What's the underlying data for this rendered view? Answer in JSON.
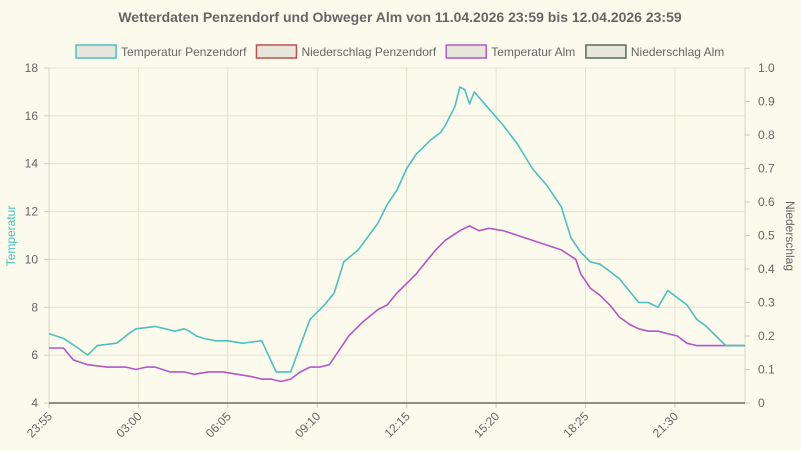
{
  "chart_data": {
    "type": "line",
    "title": "Wetterdaten Penzendorf und Obweger Alm von 11.04.2026 23:59 bis 12.04.2026 23:59",
    "ylabel": "Temperatur",
    "y2label": "Niederschlag",
    "ylim": [
      4,
      18
    ],
    "y_ticks": [
      "4",
      "6",
      "8",
      "10",
      "12",
      "14",
      "16",
      "18"
    ],
    "y2lim": [
      0,
      1
    ],
    "y2_ticks": [
      "0",
      "0.1",
      "0.2",
      "0.3",
      "0.4",
      "0.5",
      "0.6",
      "0.7",
      "0.8",
      "0.9",
      "1.0"
    ],
    "x_tick_labels": [
      "23:55",
      "03:00",
      "06:05",
      "09:10",
      "12:15",
      "15:20",
      "18:25",
      "21:30"
    ],
    "x_range_minutes": [
      0,
      1440
    ],
    "grid": true,
    "legend_position": "top",
    "series": [
      {
        "name": "Temperatur Penzendorf",
        "axis": "left",
        "color": "#4bc0c0",
        "x": [
          0,
          30,
          60,
          80,
          100,
          140,
          165,
          180,
          220,
          260,
          280,
          290,
          305,
          320,
          345,
          370,
          400,
          440,
          470,
          500,
          520,
          540,
          570,
          590,
          610,
          640,
          680,
          700,
          720,
          740,
          760,
          790,
          810,
          820,
          840,
          850,
          860,
          870,
          880,
          910,
          940,
          970,
          1000,
          1030,
          1060,
          1080,
          1100,
          1120,
          1140,
          1160,
          1180,
          1200,
          1220,
          1240,
          1260,
          1280,
          1300,
          1320,
          1340,
          1360,
          1380,
          1400,
          1410,
          1420,
          1440
        ],
        "values": [
          6.9,
          6.7,
          6.3,
          6.0,
          6.4,
          6.5,
          6.9,
          7.1,
          7.2,
          7.0,
          7.1,
          7.0,
          6.8,
          6.7,
          6.6,
          6.6,
          6.5,
          6.6,
          5.3,
          5.3,
          6.4,
          7.5,
          8.1,
          8.6,
          9.9,
          10.4,
          11.5,
          12.3,
          12.9,
          13.8,
          14.4,
          15.0,
          15.3,
          15.6,
          16.4,
          17.2,
          17.1,
          16.5,
          17.0,
          16.3,
          15.6,
          14.8,
          13.8,
          13.1,
          12.2,
          10.9,
          10.3,
          9.9,
          9.8,
          9.5,
          9.2,
          8.7,
          8.2,
          8.2,
          8.0,
          8.7,
          8.4,
          8.1,
          7.5,
          7.2,
          6.8,
          6.4,
          6.4,
          6.4,
          6.4
        ],
        "display_points": 65
      },
      {
        "name": "Niederschlag Penzendorf",
        "axis": "right",
        "color": "#c0504d",
        "x": [
          0,
          1440
        ],
        "values": [
          0,
          0
        ]
      },
      {
        "name": "Temperatur Alm",
        "axis": "left",
        "color": "#b058c8",
        "x": [
          0,
          30,
          50,
          80,
          120,
          160,
          180,
          200,
          220,
          250,
          280,
          300,
          330,
          360,
          390,
          420,
          440,
          460,
          480,
          500,
          520,
          540,
          560,
          580,
          600,
          620,
          650,
          680,
          700,
          720,
          740,
          760,
          780,
          800,
          820,
          850,
          870,
          880,
          890,
          910,
          940,
          970,
          1000,
          1030,
          1060,
          1090,
          1100,
          1120,
          1140,
          1160,
          1180,
          1200,
          1220,
          1240,
          1260,
          1280,
          1300,
          1320,
          1340,
          1360,
          1380,
          1400,
          1420,
          1440
        ],
        "values": [
          6.3,
          6.3,
          5.8,
          5.6,
          5.5,
          5.5,
          5.4,
          5.5,
          5.5,
          5.3,
          5.3,
          5.2,
          5.3,
          5.3,
          5.2,
          5.1,
          5.0,
          5.0,
          4.9,
          5.0,
          5.3,
          5.5,
          5.5,
          5.6,
          6.2,
          6.8,
          7.4,
          7.9,
          8.1,
          8.6,
          9.0,
          9.4,
          9.9,
          10.4,
          10.8,
          11.2,
          11.4,
          11.3,
          11.2,
          11.3,
          11.2,
          11.0,
          10.8,
          10.6,
          10.4,
          10.0,
          9.4,
          8.8,
          8.5,
          8.1,
          7.6,
          7.3,
          7.1,
          7.0,
          7.0,
          6.9,
          6.8,
          6.5,
          6.4,
          6.4,
          6.4,
          6.4,
          6.4,
          6.4
        ]
      },
      {
        "name": "Niederschlag Alm",
        "axis": "right",
        "color": "#5a6a5a",
        "x": [
          0,
          1440
        ],
        "values": [
          0,
          0
        ]
      }
    ]
  }
}
